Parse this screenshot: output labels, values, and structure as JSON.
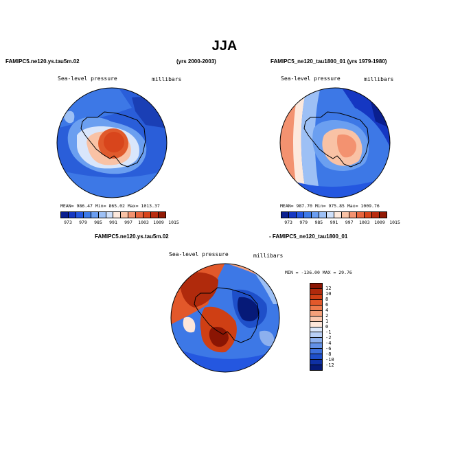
{
  "title": "JJA",
  "panel1": {
    "left_header": "FAMIPC5.ne120.ys.tau5m.02",
    "right_header": "(yrs 2000-2003)",
    "field": "Sea-level pressure",
    "units": "millibars",
    "stats": "MEAN= 986.47  Min= 865.02  Max= 1013.37"
  },
  "panel2": {
    "left_header": "FAMIPC5_ne120_tau1800_01 (yrs 1979-1980)",
    "field": "Sea-level pressure",
    "units": "millibars",
    "stats": "MEAN= 987.70  Min= 975.85  Max= 1009.76"
  },
  "panel3": {
    "left_header": "FAMIPC5.ne120.ys.tau5m.02",
    "right_header": "- FAMIPC5_ne120_tau1800_01",
    "field": "Sea-level pressure",
    "units": "millibars",
    "stats": "MIN = -136.00  MAX =  29.76"
  },
  "colorbar_h": {
    "ticks": [
      "973",
      "979",
      "985",
      "991",
      "997",
      "1003",
      "1009",
      "1015"
    ],
    "colors": [
      "#0a1f8f",
      "#1537c2",
      "#2457e0",
      "#3d7ae8",
      "#6a9df0",
      "#9dc0f5",
      "#cfe0fa",
      "#fde9dd",
      "#f9c2a5",
      "#f39270",
      "#e8663f",
      "#d8451c",
      "#b92c0f",
      "#921a05"
    ]
  },
  "colorbar_v": {
    "ticks": [
      "12",
      "10",
      "8",
      "6",
      "4",
      "2",
      "1",
      "0",
      "-1",
      "-2",
      "-4",
      "-6",
      "-8",
      "-10",
      "-12"
    ],
    "colors": [
      "#8b1503",
      "#b02a0c",
      "#cf3f14",
      "#e2582a",
      "#ee7a4c",
      "#f5a07a",
      "#fac7ae",
      "#fde6da",
      "#dde8fb",
      "#b9cff5",
      "#8db0ee",
      "#6391e6",
      "#3d70dc",
      "#1e4fc9",
      "#0f30a3",
      "#061a78"
    ]
  }
}
